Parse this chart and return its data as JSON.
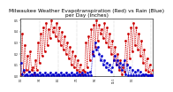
{
  "title": "Milwaukee Weather Evapotranspiration (Red) vs Rain (Blue)\nper Day (Inches)",
  "title_fontsize": 4.2,
  "line_color_et": "#cc0000",
  "line_color_rain": "#0000cc",
  "background": "#ffffff",
  "grid_color": "#888888",
  "ylim": [
    0,
    0.52
  ],
  "yticks": [
    0.0,
    0.1,
    0.2,
    0.3,
    0.4,
    0.5
  ],
  "et_values": [
    0.02,
    0.38,
    0.04,
    0.28,
    0.06,
    0.18,
    0.04,
    0.22,
    0.06,
    0.08,
    0.02,
    0.14,
    0.06,
    0.3,
    0.12,
    0.38,
    0.18,
    0.44,
    0.22,
    0.48,
    0.28,
    0.42,
    0.34,
    0.5,
    0.4,
    0.44,
    0.36,
    0.48,
    0.32,
    0.44,
    0.28,
    0.4,
    0.24,
    0.36,
    0.2,
    0.3,
    0.16,
    0.26,
    0.1,
    0.22,
    0.08,
    0.18,
    0.06,
    0.14,
    0.04,
    0.1,
    0.02,
    0.06,
    0.04,
    0.3,
    0.08,
    0.36,
    0.14,
    0.42,
    0.2,
    0.46,
    0.26,
    0.5,
    0.32,
    0.46,
    0.38,
    0.42,
    0.34,
    0.48,
    0.3,
    0.44,
    0.26,
    0.38,
    0.2,
    0.32,
    0.14,
    0.26,
    0.1,
    0.2,
    0.06,
    0.14,
    0.02,
    0.08,
    0.04,
    0.32,
    0.1,
    0.38,
    0.16,
    0.44,
    0.22,
    0.48,
    0.28,
    0.44,
    0.24,
    0.38,
    0.18,
    0.32,
    0.12,
    0.24,
    0.06,
    0.16,
    0.04,
    0.1,
    0.02,
    0.06
  ],
  "rain_values": [
    0.12,
    0.02,
    0.06,
    0.01,
    0.02,
    0.01,
    0.04,
    0.01,
    0.02,
    0.01,
    0.03,
    0.01,
    0.02,
    0.01,
    0.03,
    0.01,
    0.02,
    0.01,
    0.03,
    0.01,
    0.02,
    0.01,
    0.03,
    0.01,
    0.02,
    0.01,
    0.03,
    0.01,
    0.02,
    0.01,
    0.03,
    0.01,
    0.02,
    0.01,
    0.03,
    0.01,
    0.02,
    0.01,
    0.03,
    0.01,
    0.02,
    0.01,
    0.03,
    0.01,
    0.02,
    0.01,
    0.03,
    0.01,
    0.02,
    0.01,
    0.03,
    0.01,
    0.04,
    0.01,
    0.22,
    0.18,
    0.3,
    0.24,
    0.26,
    0.2,
    0.14,
    0.18,
    0.1,
    0.14,
    0.08,
    0.12,
    0.06,
    0.1,
    0.04,
    0.08,
    0.14,
    0.18,
    0.1,
    0.14,
    0.08,
    0.12,
    0.06,
    0.1,
    0.14,
    0.02,
    0.1,
    0.01,
    0.08,
    0.01,
    0.06,
    0.01,
    0.04,
    0.01,
    0.06,
    0.01,
    0.04,
    0.01,
    0.02,
    0.01,
    0.02,
    0.01,
    0.01,
    0.01,
    0.01,
    0.01
  ],
  "n_xticks": 14,
  "xlabels": [
    "1/1",
    "",
    "",
    "",
    "",
    "",
    "",
    "2/1",
    "",
    "",
    "",
    "",
    "",
    "",
    "3/1",
    "",
    "",
    "",
    "",
    "",
    "",
    "4/1",
    "",
    "",
    "",
    "",
    "",
    "",
    "5/1",
    "",
    "",
    "",
    "",
    "",
    "",
    "6/1",
    "",
    "",
    "",
    "",
    "",
    "",
    "7/1",
    "",
    "",
    "",
    "",
    "",
    "",
    "8/1",
    "",
    "",
    "",
    "",
    "",
    "",
    "9/1",
    "",
    "",
    "",
    "",
    "",
    "",
    "10/1",
    "",
    "",
    "",
    "",
    "",
    "",
    "11/1",
    "",
    "",
    "",
    "",
    "",
    "",
    "12/1",
    "",
    "",
    "",
    "",
    "",
    "",
    "1/1",
    "",
    "",
    "",
    "",
    "",
    "",
    "2/1"
  ]
}
